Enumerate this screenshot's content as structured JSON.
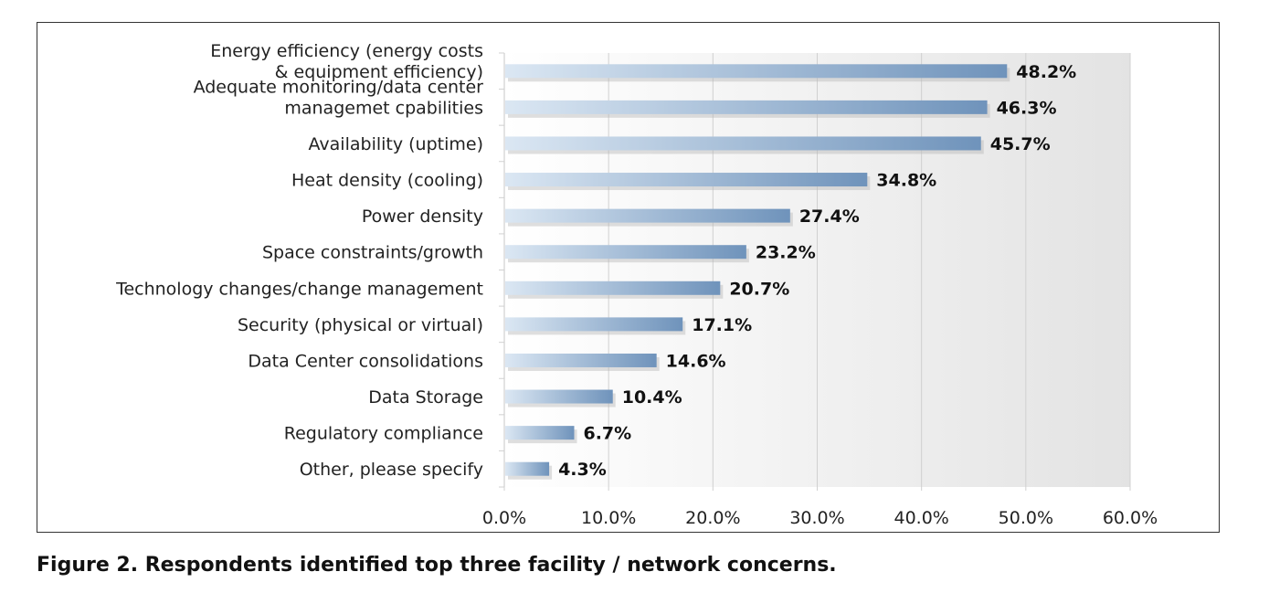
{
  "chart_data": {
    "type": "bar",
    "orientation": "horizontal",
    "title": "",
    "xlabel": "",
    "ylabel": "",
    "xlim": [
      0,
      60
    ],
    "grid": true,
    "legend": "none",
    "categories": [
      [
        "Energy efficiency (energy costs",
        "& equipment efficiency)"
      ],
      [
        "Adequate monitoring/data center",
        "managemet cpabilities"
      ],
      [
        "Availability (uptime)"
      ],
      [
        "Heat density (cooling)"
      ],
      [
        "Power density"
      ],
      [
        "Space constraints/growth"
      ],
      [
        "Technology changes/change management"
      ],
      [
        "Security (physical or virtual)"
      ],
      [
        "Data Center consolidations"
      ],
      [
        "Data Storage"
      ],
      [
        "Regulatory compliance"
      ],
      [
        "Other, please specify"
      ]
    ],
    "values": [
      48.2,
      46.3,
      45.7,
      34.8,
      27.4,
      23.2,
      20.7,
      17.1,
      14.6,
      10.4,
      6.7,
      4.3
    ],
    "value_labels": [
      "48.2%",
      "46.3%",
      "45.7%",
      "34.8%",
      "27.4%",
      "23.2%",
      "20.7%",
      "17.1%",
      "14.6%",
      "10.4%",
      "6.7%",
      "4.3%"
    ],
    "ticks": [
      0,
      10,
      20,
      30,
      40,
      50,
      60
    ],
    "tick_labels": [
      "0.0%",
      "10.0%",
      "20.0%",
      "30.0%",
      "40.0%",
      "50.0%",
      "60.0%"
    ]
  },
  "colors": {
    "bar_light": "#dbe7f3",
    "bar_dark": "#6f93bb",
    "grid": "#d0d0d0",
    "plot_bg_light": "#ffffff",
    "plot_bg_dark": "#e3e3e3",
    "shadow": "#b8b8b8"
  },
  "caption": "Figure 2. Respondents identified top three facility / network concerns."
}
